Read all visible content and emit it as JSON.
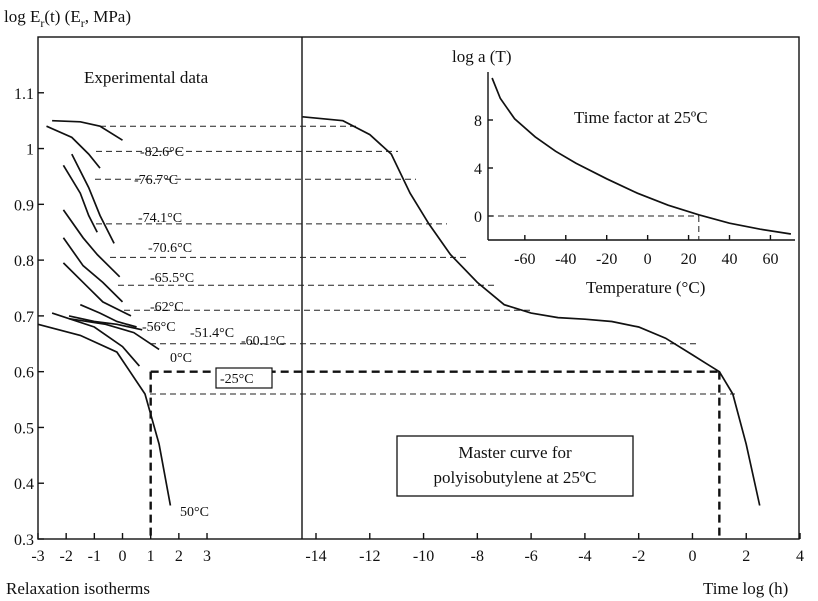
{
  "chart_data": {
    "type": "line",
    "ylabel": "log E",
    "ylabel_sub": "r",
    "ylabel_mid": "(t) (E",
    "ylabel_sub2": "r",
    "ylabel_end": ", MPa)",
    "ylim": [
      0.3,
      1.2
    ],
    "yticks": [
      "0.3",
      "0.4",
      "0.5",
      "0.6",
      "0.7",
      "0.8",
      "0.9",
      "1",
      "1.1"
    ],
    "left_panel": {
      "title": "Experimental data",
      "xlabel": "Relaxation isotherms",
      "xlim": [
        -3,
        5
      ],
      "xticks": [
        "-3",
        "-2",
        "-1",
        "0",
        "1",
        "2",
        "3"
      ],
      "isotherms": [
        {
          "label": "-82.6°C",
          "x": [
            -2.5,
            -1.5,
            -0.8,
            0.0
          ],
          "y": [
            1.05,
            1.048,
            1.04,
            1.015
          ]
        },
        {
          "label": "-76.7°C",
          "x": [
            -2.7,
            -1.8,
            -1.2,
            -0.8
          ],
          "y": [
            1.04,
            1.02,
            0.99,
            0.965
          ]
        },
        {
          "label": "-74.1°C",
          "x": [
            -2.1,
            -1.5,
            -1.2,
            -0.9
          ],
          "y": [
            0.97,
            0.92,
            0.88,
            0.85
          ]
        },
        {
          "label": "-70.6°C",
          "x": [
            -1.8,
            -1.2,
            -0.8,
            -0.3
          ],
          "y": [
            0.99,
            0.93,
            0.88,
            0.83
          ]
        },
        {
          "label": "-65.5°C",
          "x": [
            -2.1,
            -1.4,
            -0.9,
            -0.1
          ],
          "y": [
            0.89,
            0.84,
            0.81,
            0.77
          ]
        },
        {
          "label": "-62°C",
          "x": [
            -2.1,
            -1.4,
            -0.7,
            -0.0
          ],
          "y": [
            0.84,
            0.79,
            0.76,
            0.725
          ]
        },
        {
          "label": "-56°C",
          "x": [
            -2.1,
            -1.3,
            -0.7,
            0.3
          ],
          "y": [
            0.795,
            0.755,
            0.725,
            0.7
          ]
        },
        {
          "label": "-51.4°C",
          "x": [
            -1.5,
            -0.8,
            -0.2,
            0.5
          ],
          "y": [
            0.72,
            0.705,
            0.69,
            0.68
          ]
        },
        {
          "label": "-60.1°C",
          "x": [
            -1.9,
            -1.0,
            -0.2,
            0.7
          ],
          "y": [
            0.7,
            0.69,
            0.685,
            0.675
          ]
        },
        {
          "label": "0°C",
          "x": [
            -1.9,
            -0.6,
            0.4,
            1.3
          ],
          "y": [
            0.695,
            0.685,
            0.67,
            0.64
          ]
        },
        {
          "label": "-25°C",
          "x": [
            -2.5,
            -1.0,
            0.0,
            0.6
          ],
          "y": [
            0.705,
            0.68,
            0.645,
            0.61
          ]
        },
        {
          "label": "50°C",
          "x": [
            -3.0,
            -1.5,
            -0.2,
            0.8,
            1.3,
            1.7
          ],
          "y": [
            0.685,
            0.665,
            0.635,
            0.56,
            0.47,
            0.36
          ]
        }
      ],
      "isotherm_reference_x": 1
    },
    "right_panel": {
      "title": "Master curve for polyisobutylene at 25ºC",
      "xlabel": "Time log (h)",
      "xlim": [
        -14.5,
        4
      ],
      "xticks": [
        "-14",
        "-12",
        "-10",
        "-8",
        "-6",
        "-4",
        "-2",
        "0",
        "2",
        "4"
      ],
      "master_curve": {
        "x": [
          -14.5,
          -13,
          -12,
          -11.2,
          -10.5,
          -9.8,
          -9,
          -8,
          -7,
          -6,
          -5,
          -4,
          -3,
          -2,
          -1,
          0,
          0.5,
          1.0,
          1.5,
          2.0,
          2.5
        ],
        "y": [
          1.057,
          1.05,
          1.025,
          0.99,
          0.92,
          0.865,
          0.81,
          0.76,
          0.72,
          0.705,
          0.697,
          0.694,
          0.69,
          0.68,
          0.66,
          0.63,
          0.615,
          0.6,
          0.56,
          0.47,
          0.36
        ]
      },
      "reference_x": 1
    },
    "guides_y": [
      1.04,
      0.995,
      0.945,
      0.865,
      0.805,
      0.755,
      0.71,
      0.65,
      0.56
    ],
    "bold_guide_y": 0.6,
    "inset": {
      "ylabel": "log a (T)",
      "xlabel": "Temperature (°C)",
      "annotation": "Time factor at 25ºC",
      "xlim": [
        -78,
        72
      ],
      "ylim": [
        -2,
        12
      ],
      "xticks": [
        "-60",
        "-40",
        "-20",
        "0",
        "20",
        "40",
        "60"
      ],
      "yticks": [
        "8",
        "4",
        "0"
      ],
      "reference_x": 25,
      "curve": {
        "x": [
          -76,
          -72,
          -65,
          -55,
          -45,
          -35,
          -20,
          -5,
          10,
          25,
          40,
          55,
          70
        ],
        "y": [
          11.5,
          9.8,
          8.1,
          6.6,
          5.4,
          4.4,
          3.1,
          1.9,
          0.9,
          0.1,
          -0.6,
          -1.1,
          -1.5
        ]
      }
    }
  }
}
